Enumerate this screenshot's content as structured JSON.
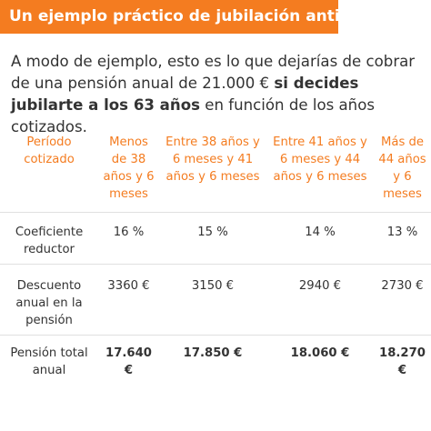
{
  "header": {
    "title": "Un ejemplo práctico de jubilación anticipada"
  },
  "intro": {
    "text_before": "A modo de ejemplo, esto es lo que dejarías de cobrar de una pensión anual de 21.000 € ",
    "text_strong": "si decides jubilarte a los 63 años",
    "text_after": " en función de los años cotizados."
  },
  "colors": {
    "accent": "#f47c20",
    "text": "#333333",
    "divider": "#e0e0e0"
  },
  "table": {
    "headers": [
      "Período cotizado",
      "Menos de 38 años y 6 meses",
      "Entre 38 años y 6 meses y 41 años y 6 meses",
      "Entre 41 años y 6 meses y 44 años y 6 meses",
      "Más de 44 años y 6 meses"
    ],
    "rows": [
      {
        "label": "Coeficiente reductor",
        "values": [
          "16 %",
          "15 %",
          "14 %",
          "13 %"
        ]
      },
      {
        "label": "Descuento anual en la pensión",
        "values": [
          "3360 €",
          "3150 €",
          "2940 €",
          "2730 €"
        ]
      },
      {
        "label": "Pensión total anual",
        "values": [
          "17.640 €",
          "17.850 €",
          "18.060 €",
          "18.270 €"
        ]
      }
    ]
  }
}
